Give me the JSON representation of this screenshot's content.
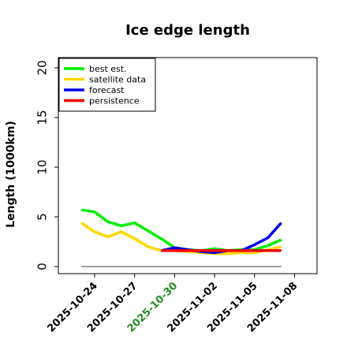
{
  "chart_data": {
    "type": "line",
    "title": "Ice edge length",
    "ylabel": "Length (1000km)",
    "xlabel": "",
    "ylim": [
      0,
      21
    ],
    "yticks": [
      0,
      5,
      10,
      15,
      20
    ],
    "xlim": [
      -1.0,
      14.5
    ],
    "xticks": [
      {
        "label": "2025-10-24",
        "x": 0,
        "color": "#000000"
      },
      {
        "label": "2025-10-27",
        "x": 3,
        "color": "#000000"
      },
      {
        "label": "2025-10-30",
        "x": 6,
        "color": "#228B22"
      },
      {
        "label": "2025-11-02",
        "x": 9,
        "color": "#000000"
      },
      {
        "label": "2025-11-05",
        "x": 12,
        "color": "#000000"
      },
      {
        "label": "2025-11-08",
        "x": 15,
        "color": "#000000"
      }
    ],
    "legend_position": "top-left",
    "baseline": {
      "y": 0,
      "color": "#808080"
    },
    "series": [
      {
        "name": "best est.",
        "color": "#00ee00",
        "x": [
          -1,
          0,
          1,
          2,
          3,
          4,
          5,
          6,
          7,
          8,
          9,
          10,
          11,
          12,
          13,
          14
        ],
        "values": [
          5.7,
          5.5,
          4.5,
          4.1,
          4.4,
          3.6,
          2.8,
          1.9,
          1.7,
          1.6,
          1.8,
          1.6,
          1.7,
          1.7,
          2.1,
          2.7
        ]
      },
      {
        "name": "satellite data",
        "color": "#ffd700",
        "x": [
          -1,
          0,
          1,
          2,
          3,
          4,
          5,
          6,
          7,
          8,
          9,
          10,
          11,
          12,
          13,
          14
        ],
        "values": [
          4.4,
          3.5,
          3.0,
          3.5,
          2.8,
          2.0,
          1.6,
          1.6,
          1.5,
          1.4,
          1.3,
          1.3,
          1.4,
          1.4,
          1.7,
          2.0
        ]
      },
      {
        "name": "forecast",
        "color": "#0000ee",
        "x": [
          5,
          6,
          7,
          8,
          9,
          10,
          11,
          12,
          13,
          14
        ],
        "values": [
          1.6,
          1.9,
          1.7,
          1.5,
          1.4,
          1.6,
          1.6,
          2.2,
          2.9,
          4.4
        ]
      },
      {
        "name": "persistence",
        "color": "#ee0000",
        "x": [
          5,
          6,
          7,
          8,
          9,
          10,
          11,
          12,
          13,
          14
        ],
        "values": [
          1.6,
          1.6,
          1.6,
          1.6,
          1.6,
          1.6,
          1.6,
          1.6,
          1.6,
          1.6
        ]
      }
    ]
  }
}
